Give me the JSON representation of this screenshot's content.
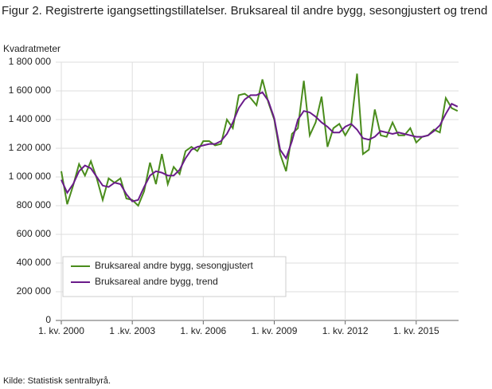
{
  "chart_data": {
    "type": "line",
    "title": "Figur 2. Registrerte igangsettingstillatelser. Bruksareal til andre bygg, sesongjustert og trend",
    "y_label": "Kvadratmeter",
    "source": "Kilde:  Statistisk sentralbyrå.",
    "categories": [
      "1. kv. 2000",
      null,
      null,
      null,
      null,
      null,
      null,
      null,
      null,
      null,
      null,
      null,
      "1 .kv. 2003",
      null,
      null,
      null,
      null,
      null,
      null,
      null,
      null,
      null,
      null,
      null,
      "1. kv. 2006",
      null,
      null,
      null,
      null,
      null,
      null,
      null,
      null,
      null,
      null,
      null,
      "1. kv. 2009",
      null,
      null,
      null,
      null,
      null,
      null,
      null,
      null,
      null,
      null,
      null,
      "1. kv. 2012",
      null,
      null,
      null,
      null,
      null,
      null,
      null,
      null,
      null,
      null,
      null,
      "1. kv. 2015",
      null,
      null,
      null,
      null,
      null,
      null,
      null
    ],
    "series": [
      {
        "name": "Bruksareal andre bygg, sesongjustert",
        "color": "#4a8c1c",
        "values": [
          1040000,
          810000,
          940000,
          1090000,
          1010000,
          1110000,
          990000,
          840000,
          990000,
          960000,
          990000,
          850000,
          840000,
          800000,
          900000,
          1100000,
          950000,
          1160000,
          950000,
          1070000,
          1020000,
          1180000,
          1210000,
          1180000,
          1250000,
          1250000,
          1220000,
          1230000,
          1400000,
          1340000,
          1570000,
          1580000,
          1550000,
          1500000,
          1680000,
          1520000,
          1400000,
          1160000,
          1040000,
          1300000,
          1340000,
          1670000,
          1290000,
          1380000,
          1560000,
          1210000,
          1340000,
          1370000,
          1290000,
          1360000,
          1720000,
          1160000,
          1190000,
          1470000,
          1290000,
          1280000,
          1380000,
          1290000,
          1290000,
          1340000,
          1240000,
          1280000,
          1290000,
          1330000,
          1310000,
          1550000,
          1480000,
          1460000
        ]
      },
      {
        "name": "Bruksareal andre bygg, trend",
        "color": "#6a1b8a",
        "values": [
          980000,
          890000,
          950000,
          1040000,
          1080000,
          1060000,
          1000000,
          940000,
          930000,
          960000,
          950000,
          880000,
          830000,
          840000,
          930000,
          1010000,
          1040000,
          1030000,
          1010000,
          1010000,
          1050000,
          1130000,
          1190000,
          1210000,
          1220000,
          1230000,
          1230000,
          1250000,
          1300000,
          1380000,
          1480000,
          1540000,
          1570000,
          1570000,
          1590000,
          1530000,
          1410000,
          1190000,
          1130000,
          1250000,
          1400000,
          1460000,
          1450000,
          1420000,
          1380000,
          1350000,
          1310000,
          1310000,
          1350000,
          1370000,
          1330000,
          1270000,
          1260000,
          1280000,
          1320000,
          1310000,
          1300000,
          1310000,
          1300000,
          1290000,
          1280000,
          1280000,
          1290000,
          1320000,
          1360000,
          1440000,
          1510000,
          1490000
        ]
      }
    ],
    "ylim": [
      0,
      1800000
    ],
    "yticks": [
      0,
      {
        "value": 200000,
        "label": "200 000"
      },
      {
        "value": 400000,
        "label": "400 000"
      },
      {
        "value": 600000,
        "label": "600 000"
      },
      {
        "value": 800000,
        "label": "800 000"
      },
      {
        "value": 1000000,
        "label": "1 000 000"
      },
      {
        "value": 1200000,
        "label": "1 200 000"
      },
      {
        "value": 1400000,
        "label": "1 400 000"
      },
      {
        "value": 1600000,
        "label": "1 600 000"
      },
      {
        "value": 1800000,
        "label": "1 800 000"
      }
    ],
    "grid": true
  }
}
